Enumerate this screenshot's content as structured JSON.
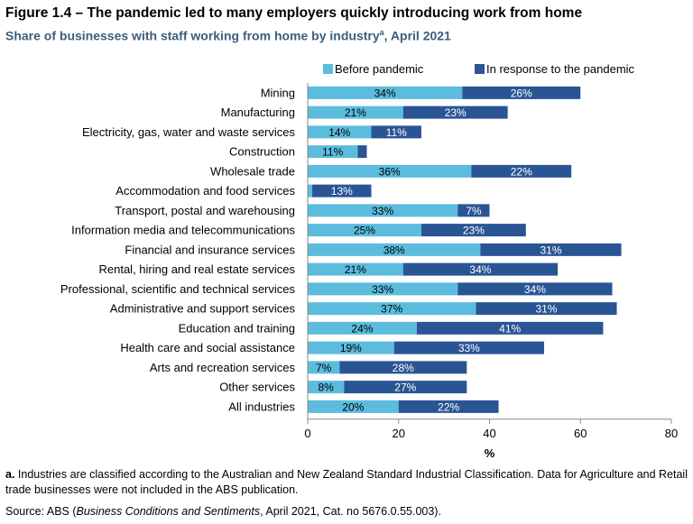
{
  "header": {
    "title": "Figure 1.4 – The pandemic led to many employers quickly introducing work from home",
    "subtitle": "Share of businesses with staff working from home by industry",
    "subtitle_sup": "a",
    "subtitle_suffix": ", April 2021"
  },
  "footer": {
    "note_label": "a.",
    "note_text": " Industries are classified according to the Australian and New Zealand Standard Industrial Classification. Data for Agriculture and Retail trade businesses were not included in the ABS publication.",
    "source_prefix": "Source: ABS (",
    "source_title": "Business Conditions and Sentiments",
    "source_suffix": ", April 2021, Cat. no 5676.0.55.003)."
  },
  "colors": {
    "before": "#5bbcde",
    "response": "#2a5595",
    "axis": "#888888"
  },
  "chart_data": {
    "type": "bar",
    "orientation": "horizontal",
    "stacked": true,
    "categories": [
      "Mining",
      "Manufacturing",
      "Electricity, gas, water and waste services",
      "Construction",
      "Wholesale trade",
      "Accommodation and food services",
      "Transport, postal and warehousing",
      "Information media and telecommunications",
      "Financial and insurance services",
      "Rental, hiring and real estate services",
      "Professional, scientific and technical services",
      "Administrative and support services",
      "Education and training",
      "Health care and social assistance",
      "Arts and recreation services",
      "Other services",
      "All industries"
    ],
    "series": [
      {
        "name": "Before pandemic",
        "values": [
          34,
          21,
          14,
          11,
          36,
          1,
          33,
          25,
          38,
          21,
          33,
          37,
          24,
          19,
          7,
          8,
          20
        ],
        "labels": [
          "34%",
          "21%",
          "14%",
          "11%",
          "36%",
          "",
          "33%",
          "25%",
          "38%",
          "21%",
          "33%",
          "37%",
          "24%",
          "19%",
          "7%",
          "8%",
          "20%"
        ]
      },
      {
        "name": "In response to the pandemic",
        "values": [
          26,
          23,
          11,
          2,
          22,
          13,
          7,
          23,
          31,
          34,
          34,
          31,
          41,
          33,
          28,
          27,
          22
        ],
        "labels": [
          "26%",
          "23%",
          "11%",
          "",
          "22%",
          "13%",
          "7%",
          "23%",
          "31%",
          "34%",
          "34%",
          "31%",
          "41%",
          "33%",
          "28%",
          "27%",
          "22%"
        ]
      }
    ],
    "xlim": [
      0,
      80
    ],
    "xticks": [
      0,
      20,
      40,
      60,
      80
    ],
    "xtick_labels": [
      "0",
      "20",
      "40",
      "60",
      "80"
    ],
    "xlabel": "%",
    "legend_position": "top-right",
    "grid": false
  }
}
